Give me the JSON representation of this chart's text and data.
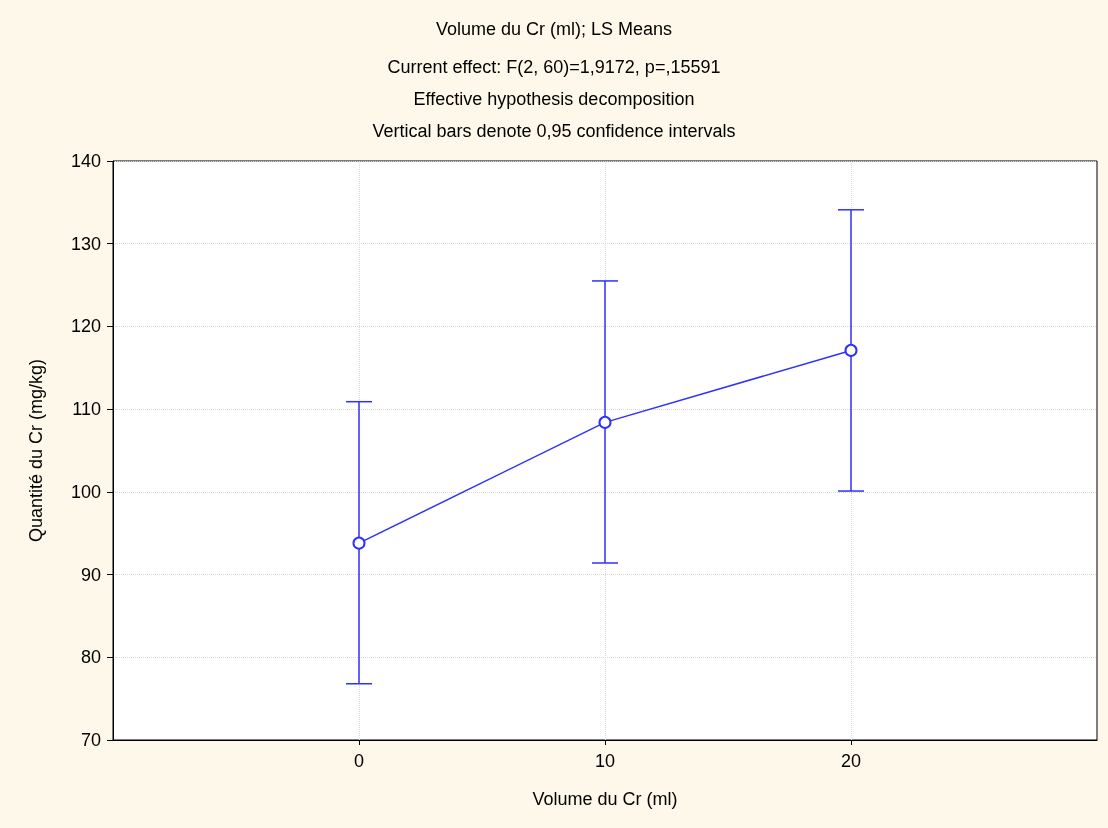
{
  "chart_data": {
    "type": "line",
    "title": "Volume du Cr (ml); LS Means",
    "subtitle": "Current effect: F(2, 60)=1,9172, p=,15591",
    "annotations": [
      "Effective hypothesis decomposition",
      "Vertical bars denote 0,95 confidence intervals"
    ],
    "xlabel": "Volume du Cr (ml)",
    "ylabel": "Quantité du Cr (mg/kg)",
    "x": [
      0,
      10,
      20
    ],
    "series": [
      {
        "color": "#3030ff",
        "values": [
          93.8,
          108.4,
          117.1
        ],
        "errors": [
          [
            76.8,
            110.9
          ],
          [
            91.4,
            125.5
          ],
          [
            100.1,
            134.1
          ]
        ]
      }
    ],
    "xlim": [
      -10,
      30
    ],
    "xticks": [
      0,
      10,
      20
    ],
    "ylim": [
      70,
      140
    ],
    "yticks": [
      70,
      80,
      90,
      100,
      110,
      120,
      130,
      140
    ],
    "grid": true,
    "marker": "circle",
    "line_style": "solid"
  }
}
